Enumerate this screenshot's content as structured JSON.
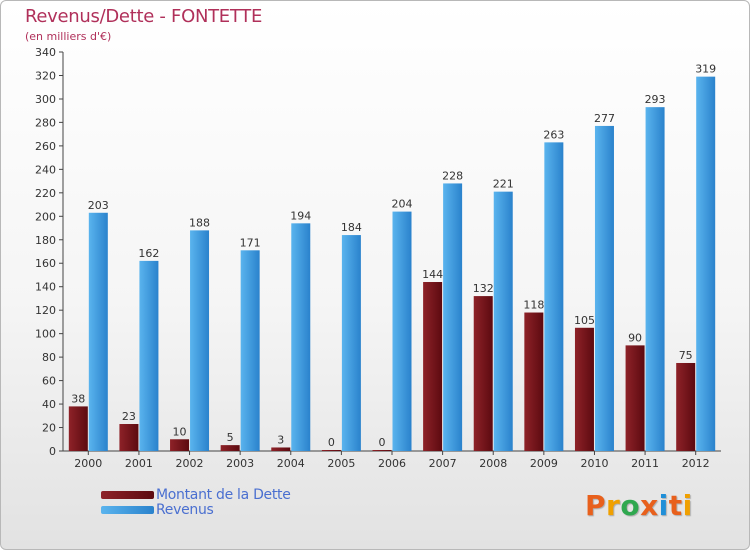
{
  "header": {
    "title": "Revenus/Dette - FONTETTE",
    "subtitle": "(en milliers d'€)"
  },
  "brand": {
    "letters": [
      "P",
      "r",
      "o",
      "x",
      "i",
      "t",
      "i"
    ],
    "colors": [
      "#e8601c",
      "#f0a000",
      "#2fa84f",
      "#e8601c",
      "#1f8fd8",
      "#e8601c",
      "#f0a000"
    ]
  },
  "colors": {
    "debt": "#7a1218",
    "revenue": "#3a98e0",
    "title": "#b0305a",
    "legend_text": "#4a6fd0"
  },
  "chart_data": {
    "type": "bar",
    "title": "Revenus/Dette - FONTETTE",
    "subtitle": "(en milliers d'€)",
    "categories": [
      "2000",
      "2001",
      "2002",
      "2003",
      "2004",
      "2005",
      "2006",
      "2007",
      "2008",
      "2009",
      "2010",
      "2011",
      "2012"
    ],
    "series": [
      {
        "name": "Montant de la Dette",
        "values": [
          38,
          23,
          10,
          5,
          3,
          0,
          0,
          144,
          132,
          118,
          105,
          90,
          75
        ]
      },
      {
        "name": "Revenus",
        "values": [
          203,
          162,
          188,
          171,
          194,
          184,
          204,
          228,
          221,
          263,
          277,
          293,
          319
        ]
      }
    ],
    "ylim": [
      0,
      340
    ],
    "yticks": [
      0,
      20,
      40,
      60,
      80,
      100,
      120,
      140,
      160,
      180,
      200,
      220,
      240,
      260,
      280,
      300,
      320,
      340
    ],
    "grid": false,
    "legend": "bottom-left"
  }
}
